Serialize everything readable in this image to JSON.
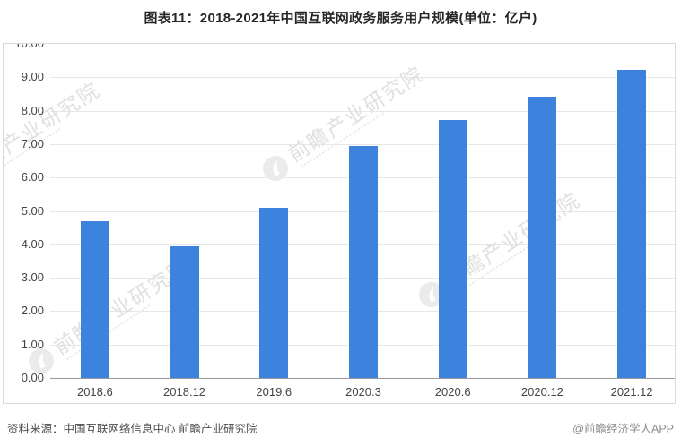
{
  "title": "图表11：2018-2021年中国互联网政务服务用户规模(单位：亿户)",
  "chart_data": {
    "type": "bar",
    "title": "图表11：2018-2021年中国互联网政务服务用户规模(单位：亿户)",
    "categories": [
      "2018.6",
      "2018.12",
      "2019.6",
      "2020.3",
      "2020.6",
      "2020.12",
      "2021.12"
    ],
    "values": [
      4.7,
      3.94,
      5.09,
      6.94,
      7.73,
      8.43,
      9.21
    ],
    "xlabel": "",
    "ylabel": "",
    "unit": "亿户",
    "ylim": [
      0,
      10
    ],
    "ytick_step": 1,
    "ytick_format_decimals": 2,
    "grid": true,
    "legend": "none",
    "bar_color": "#3d82dd"
  },
  "watermark": {
    "text": "前瞻产业研究院",
    "logo": "qianzhan-logo"
  },
  "footer": {
    "source": "资料来源：中国互联网络信息中心 前瞻产业研究院",
    "brand": "@前瞻经济学人APP"
  }
}
